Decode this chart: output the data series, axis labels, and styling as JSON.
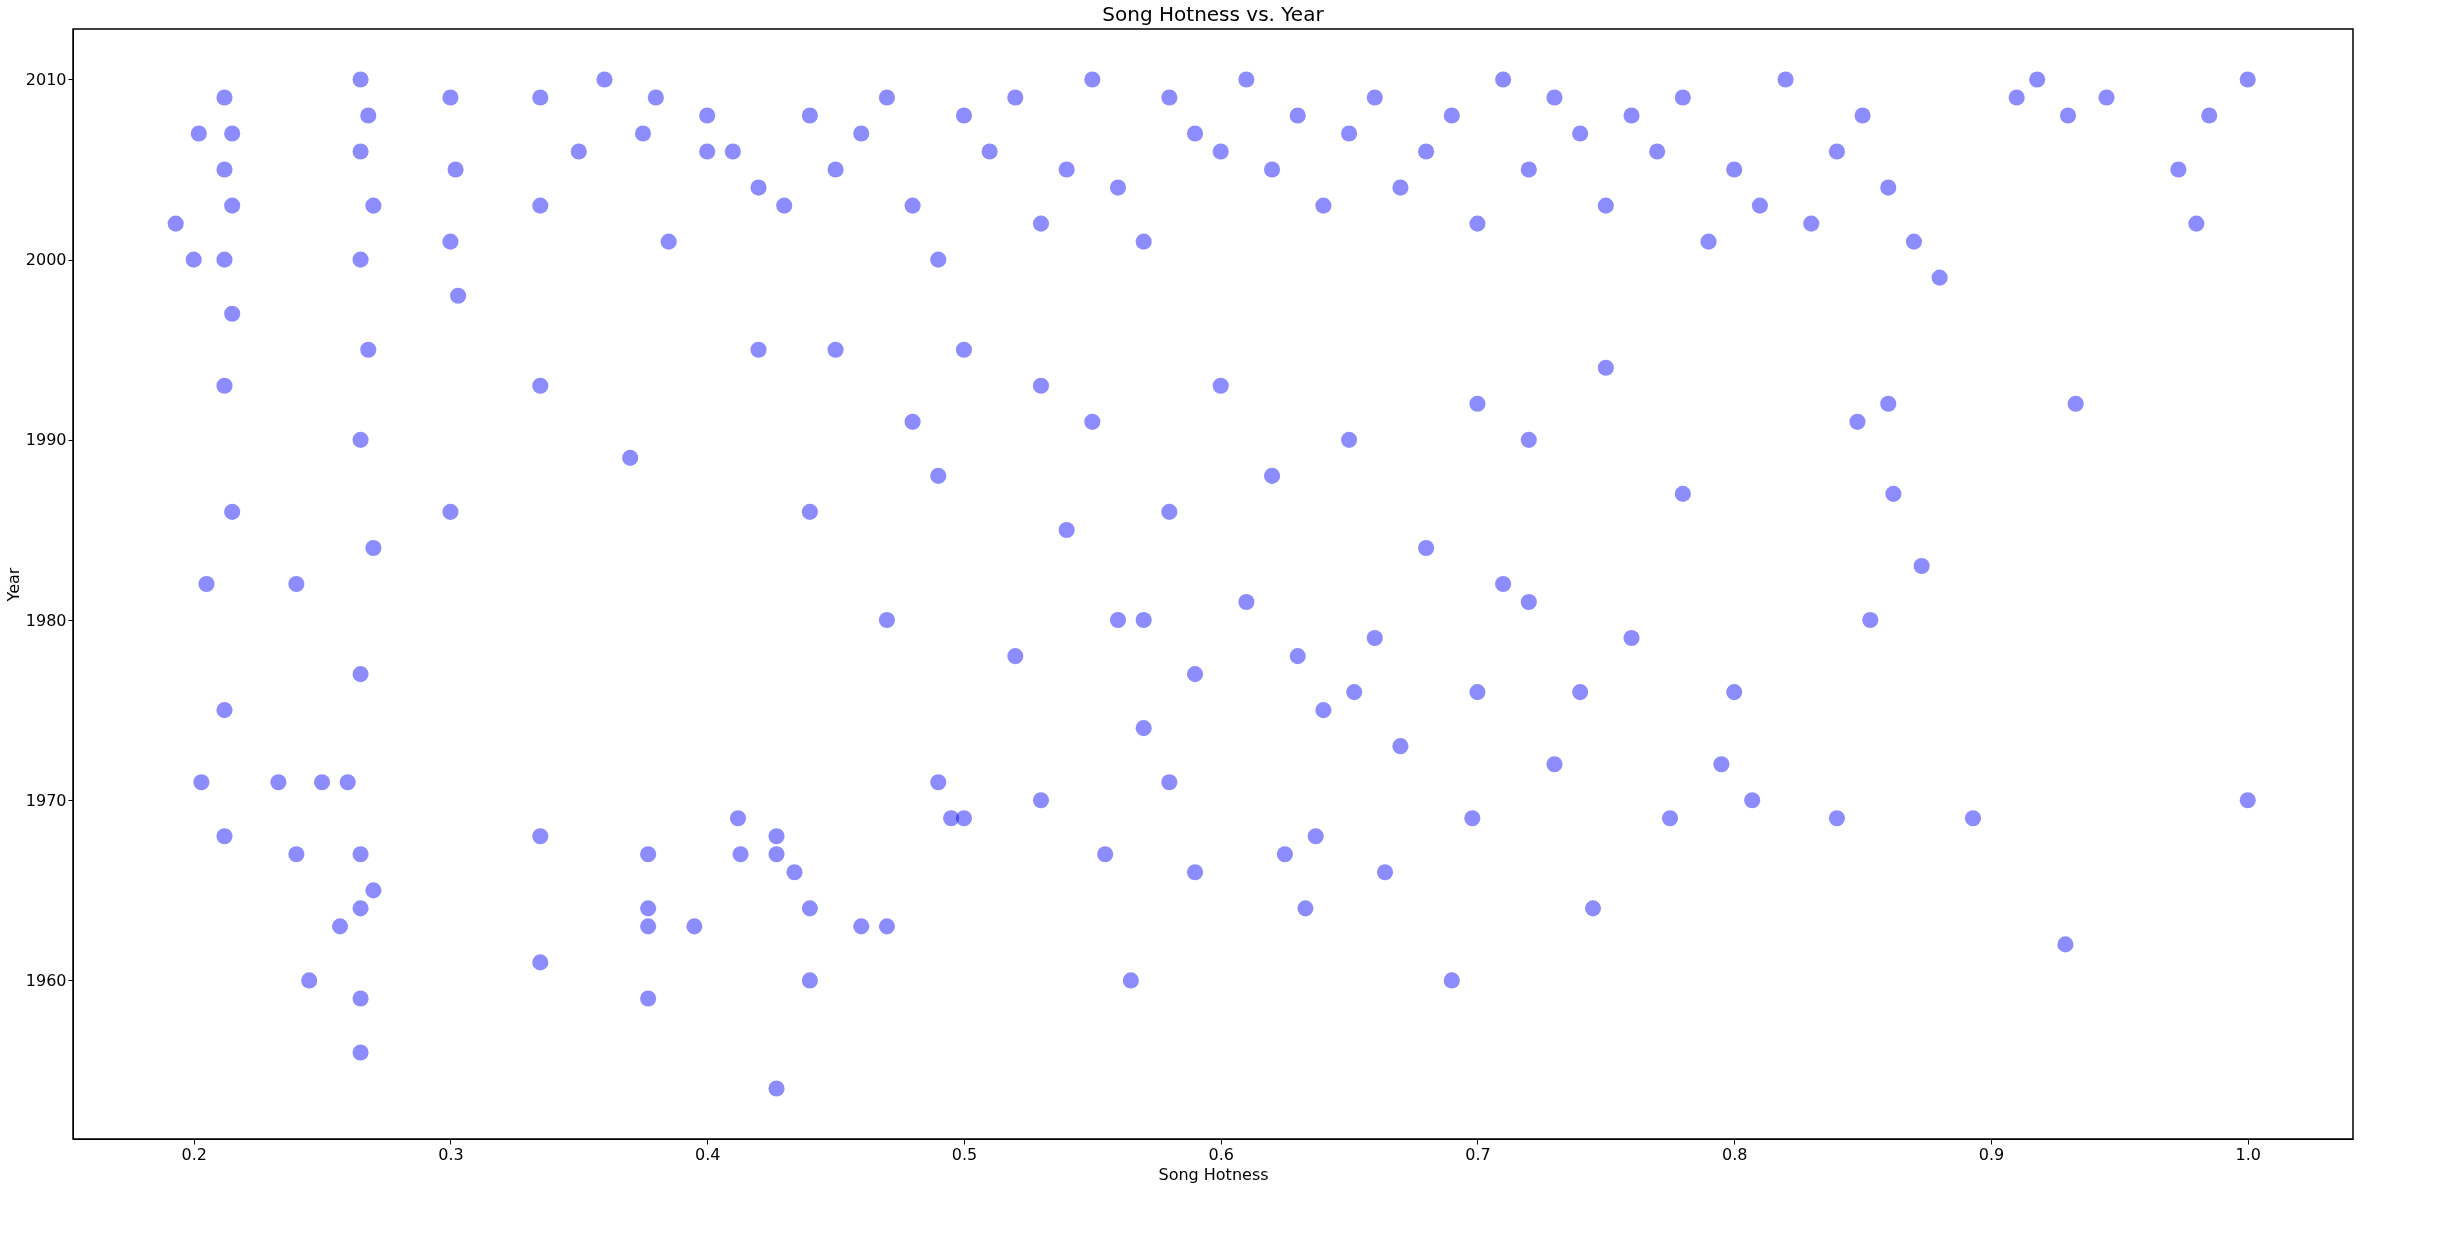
{
  "chart_data": {
    "type": "scatter",
    "title": "Song Hotness vs. Year",
    "xlabel": "Song Hotness",
    "ylabel": "Year",
    "xlim": [
      0.153,
      1.041
    ],
    "xticks": [
      0.2,
      0.3,
      0.4,
      0.5,
      0.6,
      0.7,
      0.8,
      0.9,
      {
        "value": 1.0,
        "label": "1.0"
      }
    ],
    "ylim": [
      1951.2,
      2012.8
    ],
    "yticks": [
      1960,
      1970,
      1980,
      1990,
      2000,
      2010
    ],
    "grid": false,
    "marker": "circle",
    "series": [
      {
        "color": "#0000ff",
        "x": [
          0.427,
          0.265,
          0.265,
          0.377,
          0.929,
          0.245,
          0.44,
          0.565,
          0.69,
          0.335,
          0.257,
          0.377,
          0.395,
          0.46,
          0.47,
          0.265,
          0.377,
          0.44,
          0.633,
          0.745,
          0.27,
          0.434,
          0.59,
          0.664,
          0.24,
          0.265,
          0.377,
          0.413,
          0.427,
          0.555,
          0.625,
          0.212,
          0.335,
          0.427,
          0.637,
          0.203,
          0.25,
          0.233,
          0.26,
          1.0,
          0.893,
          0.84,
          0.807,
          0.775,
          0.698,
          0.495,
          0.5,
          0.412,
          0.212,
          0.205,
          0.24,
          0.193,
          0.2,
          0.202,
          0.985,
          1.0,
          0.98,
          0.973,
          0.945,
          0.93,
          0.933,
          0.918,
          0.91,
          0.873,
          0.853,
          0.862,
          0.86,
          0.848,
          0.795,
          0.8,
          0.73,
          0.76,
          0.652,
          0.72,
          0.74,
          0.212,
          0.215,
          0.212,
          0.215,
          0.212,
          0.215,
          0.212,
          0.215,
          0.265,
          0.268,
          0.265,
          0.27,
          0.265,
          0.268,
          0.265,
          0.27,
          0.265,
          0.3,
          0.302,
          0.3,
          0.303,
          0.3,
          0.335,
          0.335,
          0.335,
          0.35,
          0.36,
          0.375,
          0.38,
          0.385,
          0.4,
          0.41,
          0.42,
          0.43,
          0.44,
          0.45,
          0.46,
          0.47,
          0.48,
          0.49,
          0.5,
          0.51,
          0.52,
          0.53,
          0.54,
          0.55,
          0.56,
          0.57,
          0.58,
          0.59,
          0.6,
          0.61,
          0.62,
          0.63,
          0.64,
          0.65,
          0.66,
          0.67,
          0.68,
          0.69,
          0.7,
          0.71,
          0.72,
          0.73,
          0.74,
          0.75,
          0.76,
          0.77,
          0.78,
          0.79,
          0.8,
          0.81,
          0.82,
          0.83,
          0.84,
          0.85,
          0.86,
          0.87,
          0.88,
          0.4,
          0.45,
          0.5,
          0.55,
          0.6,
          0.65,
          0.7,
          0.75,
          0.42,
          0.48,
          0.53,
          0.58,
          0.62,
          0.68,
          0.72,
          0.78,
          0.37,
          0.44,
          0.49,
          0.54,
          0.57,
          0.61,
          0.66,
          0.71,
          0.47,
          0.52,
          0.56,
          0.59,
          0.63,
          0.67,
          0.49,
          0.53,
          0.57,
          0.64,
          0.58,
          0.7
        ],
        "values": [
          1954,
          1956,
          1959,
          1959,
          1962,
          1960,
          1960,
          1960,
          1960,
          1961,
          1963,
          1963,
          1963,
          1963,
          1963,
          1964,
          1964,
          1964,
          1964,
          1964,
          1965,
          1966,
          1966,
          1966,
          1967,
          1967,
          1967,
          1967,
          1967,
          1967,
          1967,
          1968,
          1968,
          1968,
          1968,
          1971,
          1971,
          1971,
          1971,
          1970,
          1969,
          1969,
          1970,
          1969,
          1969,
          1969,
          1969,
          1969,
          1975,
          1982,
          1982,
          2002,
          2000,
          2007,
          2008,
          2010,
          2002,
          2005,
          2009,
          2008,
          1992,
          2010,
          2009,
          1983,
          1980,
          1987,
          1992,
          1991,
          1972,
          1976,
          1972,
          1979,
          1976,
          1981,
          1976,
          2009,
          2007,
          2005,
          2003,
          2000,
          1997,
          1993,
          1986,
          2010,
          2008,
          2006,
          2003,
          2000,
          1995,
          1990,
          1984,
          1977,
          2009,
          2005,
          2001,
          1998,
          1986,
          2009,
          2003,
          1993,
          2006,
          2010,
          2007,
          2009,
          2001,
          2008,
          2006,
          2004,
          2003,
          2008,
          2005,
          2007,
          2009,
          2003,
          2000,
          2008,
          2006,
          2009,
          2002,
          2005,
          2010,
          2004,
          2001,
          2009,
          2007,
          2006,
          2010,
          2005,
          2008,
          2003,
          2007,
          2009,
          2004,
          2006,
          2008,
          2002,
          2010,
          2005,
          2009,
          2007,
          2003,
          2008,
          2006,
          2009,
          2001,
          2005,
          2003,
          2010,
          2002,
          2006,
          2008,
          2004,
          2001,
          1999,
          2006,
          1995,
          1995,
          1991,
          1993,
          1990,
          1992,
          1994,
          1995,
          1991,
          1993,
          1986,
          1988,
          1984,
          1990,
          1987,
          1989,
          1986,
          1988,
          1985,
          1980,
          1981,
          1979,
          1982,
          1980,
          1978,
          1980,
          1977,
          1978,
          1973,
          1971,
          1970,
          1974,
          1975,
          1971,
          1976
        ]
      }
    ]
  }
}
